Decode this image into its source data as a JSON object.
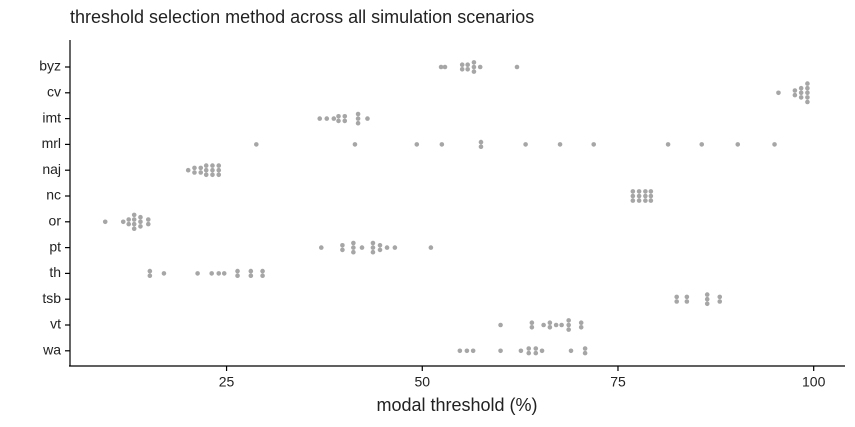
{
  "chart_data": {
    "type": "dotplot",
    "title": "threshold selection method across all simulation scenarios",
    "x_label": "modal threshold (%)",
    "color": "#a6a6a6",
    "xlim": [
      5,
      104
    ],
    "xticks": [
      25,
      50,
      75,
      100
    ],
    "groups": [
      {
        "name": "byz",
        "values": [
          52.4,
          52.9,
          55.1,
          55.1,
          55.8,
          55.8,
          56.6,
          56.6,
          56.6,
          57.4,
          62.1
        ]
      },
      {
        "name": "cv",
        "values": [
          95.5,
          97.6,
          97.6,
          98.4,
          98.4,
          98.4,
          99.2,
          99.2,
          99.2,
          99.2,
          99.2
        ]
      },
      {
        "name": "imt",
        "values": [
          36.9,
          37.8,
          38.7,
          39.3,
          39.3,
          40.1,
          40.1,
          41.8,
          41.8,
          41.8,
          43.0
        ]
      },
      {
        "name": "mrl",
        "values": [
          28.8,
          41.4,
          49.3,
          52.5,
          57.5,
          57.5,
          63.2,
          67.6,
          71.9,
          81.4,
          85.7,
          90.3,
          95.0
        ]
      },
      {
        "name": "naj",
        "values": [
          20.1,
          20.9,
          20.9,
          21.7,
          21.7,
          22.4,
          22.4,
          22.4,
          23.2,
          23.2,
          23.2,
          24.0,
          24.0,
          24.0
        ]
      },
      {
        "name": "nc",
        "values": [
          76.9,
          76.9,
          76.9,
          77.7,
          77.7,
          77.7,
          78.5,
          78.5,
          78.5,
          79.2,
          79.2,
          79.2
        ]
      },
      {
        "name": "or",
        "values": [
          9.5,
          11.8,
          12.5,
          12.5,
          13.2,
          13.2,
          13.2,
          13.2,
          14.0,
          14.0,
          14.0,
          15.0,
          15.0
        ]
      },
      {
        "name": "pt",
        "values": [
          37.1,
          39.8,
          39.8,
          41.2,
          41.2,
          41.2,
          42.3,
          43.7,
          43.7,
          43.7,
          44.6,
          44.6,
          45.5,
          46.5,
          51.1
        ]
      },
      {
        "name": "th",
        "values": [
          15.2,
          15.2,
          17.0,
          21.3,
          23.1,
          24.0,
          24.7,
          26.4,
          26.4,
          28.1,
          28.1,
          29.6,
          29.6
        ]
      },
      {
        "name": "tsb",
        "values": [
          82.5,
          82.5,
          83.8,
          83.8,
          86.4,
          86.4,
          86.4,
          88.0,
          88.0
        ]
      },
      {
        "name": "vt",
        "values": [
          60.0,
          64.0,
          64.0,
          65.5,
          66.3,
          66.3,
          67.1,
          67.8,
          68.7,
          68.7,
          68.7,
          70.3,
          70.3
        ]
      },
      {
        "name": "wa",
        "values": [
          54.8,
          55.7,
          56.5,
          60.0,
          62.6,
          63.6,
          63.6,
          64.5,
          64.5,
          65.3,
          69.0,
          70.8,
          70.8
        ]
      }
    ]
  }
}
